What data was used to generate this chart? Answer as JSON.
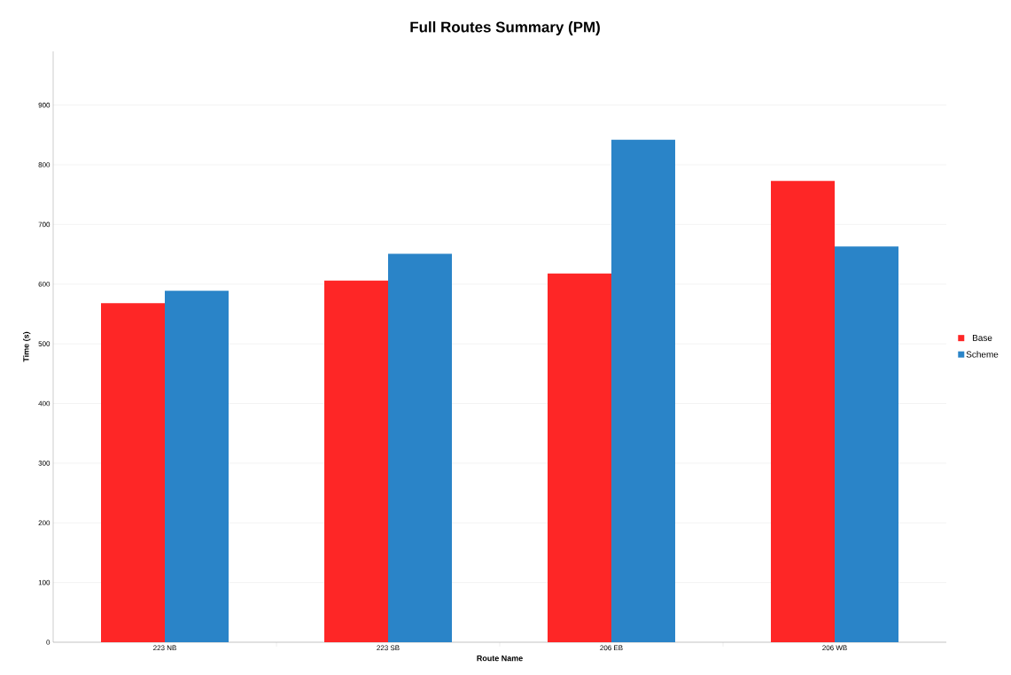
{
  "chart_data": {
    "type": "bar",
    "title": "Full Routes Summary (PM)",
    "xlabel": "Route Name",
    "ylabel": "Time (s)",
    "categories": [
      "223 NB",
      "223 SB",
      "206 EB",
      "206 WB"
    ],
    "series": [
      {
        "name": "Base",
        "color": "#fe2626",
        "values": [
          568,
          606,
          618,
          773
        ]
      },
      {
        "name": "Scheme",
        "color": "#2a84c8",
        "values": [
          589,
          651,
          842,
          663
        ]
      }
    ],
    "ylim": [
      0,
      990
    ],
    "yticks": [
      0,
      100,
      200,
      300,
      400,
      500,
      600,
      700,
      800,
      900
    ],
    "grid": "y",
    "legend": "right"
  }
}
